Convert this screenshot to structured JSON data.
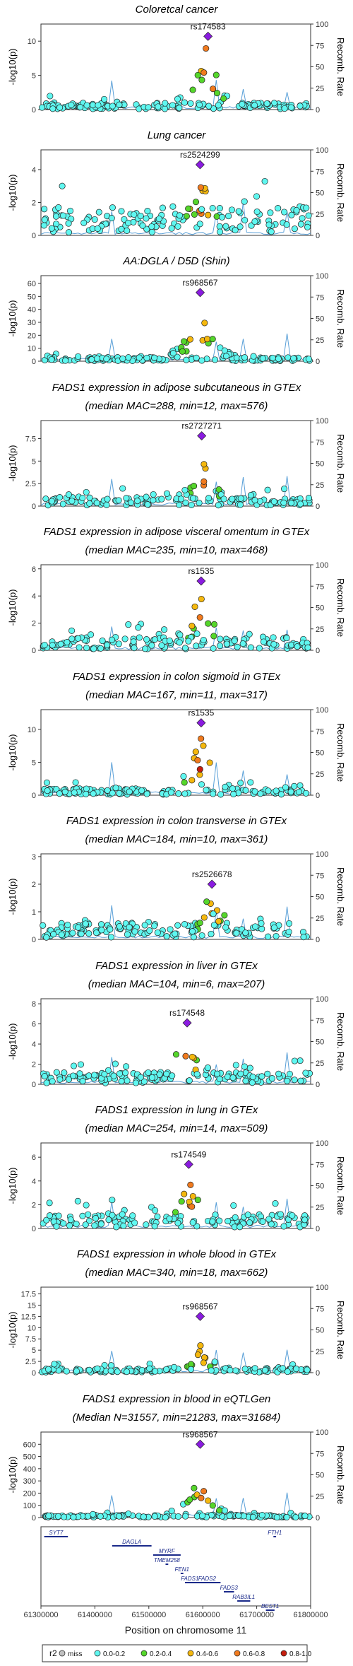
{
  "x_axis": {
    "label": "Position on chromosome 11",
    "range": [
      61300000,
      61800000
    ],
    "ticks": [
      61300000,
      61400000,
      61500000,
      61600000,
      61700000,
      61800000
    ],
    "tick_labels": [
      "61300000",
      "61400000",
      "61500000",
      "61600000",
      "61700000",
      "61800000"
    ]
  },
  "y_axis_label": "-log10(p)",
  "y2_axis": {
    "label": "Recomb. Rate",
    "range": [
      0,
      100
    ],
    "ticks": [
      0,
      25,
      50,
      75,
      100
    ]
  },
  "legend": {
    "title": "r2",
    "items": [
      {
        "label": "miss",
        "color": "#c0c0c0"
      },
      {
        "label": "0.0-0.2",
        "color": "#5ff7f0"
      },
      {
        "label": "0.2-0.4",
        "color": "#55d62b"
      },
      {
        "label": "0.4-0.6",
        "color": "#f5b80e"
      },
      {
        "label": "0.6-0.8",
        "color": "#f07a1e"
      },
      {
        "label": "0.8-1.0",
        "color": "#c41e0e"
      }
    ]
  },
  "lead_color": "#8a1be0",
  "recomb_color": "#5aa0d8",
  "genes": [
    {
      "name": "SYT7",
      "start": 61306000,
      "end": 61350000
    },
    {
      "name": "DAGLA",
      "start": 61432000,
      "end": 61505000
    },
    {
      "name": "MYRF",
      "start": 61508000,
      "end": 61559000
    },
    {
      "name": "TMEM258",
      "start": 61531000,
      "end": 61536000
    },
    {
      "name": "FEN1",
      "start": 61559000,
      "end": 61564000
    },
    {
      "name": "FADS2",
      "start": 61583000,
      "end": 61633000
    },
    {
      "name": "FADS1",
      "start": 61567000,
      "end": 61585000
    },
    {
      "name": "FADS3",
      "start": 61639000,
      "end": 61658000
    },
    {
      "name": "RAB3IL1",
      "start": 61664000,
      "end": 61688000
    },
    {
      "name": "BEST1",
      "start": 61717000,
      "end": 61733000
    },
    {
      "name": "FTH1",
      "start": 61731000,
      "end": 61736000
    }
  ],
  "chart_data": [
    {
      "type": "scatter",
      "title": "Coloretcal cancer",
      "subtitle": "",
      "lead_snp": "rs174583",
      "lead": {
        "x": 61609750,
        "y": 10.7
      },
      "ylim": [
        0,
        12.5
      ],
      "y_ticks": [
        0,
        5,
        10
      ],
      "peak": 10.3,
      "baseline": 0.5
    },
    {
      "type": "scatter",
      "title": "Lung cancer",
      "subtitle": "",
      "lead_snp": "rs2524299",
      "lead": {
        "x": 61595000,
        "y": 4.3
      },
      "ylim": [
        0,
        5.2
      ],
      "y_ticks": [
        0,
        2,
        4
      ],
      "peak": 3.9,
      "baseline": 0.9
    },
    {
      "type": "scatter",
      "title": "AA:DGLA / D5D (Shin)",
      "subtitle": "",
      "lead_snp": "rs968567",
      "lead": {
        "x": 61595200,
        "y": 53
      },
      "ylim": [
        0,
        66
      ],
      "y_ticks": [
        0,
        10,
        20,
        30,
        40,
        50,
        60
      ],
      "peak": 44,
      "baseline": 1.5
    },
    {
      "type": "scatter",
      "title": "FADS1 expression in adipose subcutaneous in GTEx",
      "subtitle": "(median MAC=288, min=12, max=576)",
      "lead_snp": "rs2727271",
      "lead": {
        "x": 61598000,
        "y": 7.8
      },
      "ylim": [
        0,
        9.5
      ],
      "y_ticks": [
        0,
        2.5,
        5,
        7.5
      ],
      "peak": 5.4,
      "baseline": 0.5
    },
    {
      "type": "scatter",
      "title": "FADS1 expression in adipose visceral omentum in GTEx",
      "subtitle": "(median MAC=235, min=10, max=468)",
      "lead_snp": "rs1535",
      "lead": {
        "x": 61597000,
        "y": 5.1
      },
      "ylim": [
        0,
        6.3
      ],
      "y_ticks": [
        0,
        2,
        4,
        6
      ],
      "peak": 5.0,
      "baseline": 0.5
    },
    {
      "type": "scatter",
      "title": "FADS1 expression in colon sigmoid in GTEx",
      "subtitle": "(median MAC=167, min=11, max=317)",
      "lead_snp": "rs1535",
      "lead": {
        "x": 61597000,
        "y": 11.0
      },
      "ylim": [
        0,
        13
      ],
      "y_ticks": [
        0,
        5,
        10
      ],
      "peak": 9.5,
      "baseline": 0.5
    },
    {
      "type": "scatter",
      "title": "FADS1 expression in colon transverse in GTEx",
      "subtitle": "(median MAC=184, min=10, max=361)",
      "lead_snp": "rs2526678",
      "lead": {
        "x": 61617000,
        "y": 2.0
      },
      "ylim": [
        0,
        3.1
      ],
      "y_ticks": [
        0,
        1,
        2,
        3
      ],
      "peak": 2.0,
      "baseline": 0.3
    },
    {
      "type": "scatter",
      "title": "FADS1 expression in liver in GTEx",
      "subtitle": "(median MAC=104, min=6, max=207)",
      "lead_snp": "rs174548",
      "lead": {
        "x": 61571000,
        "y": 6.1
      },
      "ylim": [
        0,
        8.5
      ],
      "y_ticks": [
        0,
        2,
        4,
        6,
        8
      ],
      "peak": 6.8,
      "baseline": 0.6
    },
    {
      "type": "scatter",
      "title": "FADS1 expression in lung in GTEx",
      "subtitle": "(median MAC=254, min=14, max=509)",
      "lead_snp": "rs174549",
      "lead": {
        "x": 61574000,
        "y": 5.4
      },
      "ylim": [
        0,
        7.2
      ],
      "y_ticks": [
        0,
        2,
        4,
        6
      ],
      "peak": 5.4,
      "baseline": 0.6
    },
    {
      "type": "scatter",
      "title": "FADS1 expression in whole blood in GTEx",
      "subtitle": "(median MAC=340, min=18, max=662)",
      "lead_snp": "rs968567",
      "lead": {
        "x": 61595200,
        "y": 12.5
      },
      "ylim": [
        0,
        19
      ],
      "y_ticks": [
        0,
        2.5,
        5,
        7.5,
        10,
        12.5,
        15,
        17.5
      ],
      "peak": 6.4,
      "baseline": 0.5
    },
    {
      "type": "scatter",
      "title": "FADS1 expression in blood in eQTLGen",
      "subtitle": "(Median N=31557, min=21283, max=31684)",
      "lead_snp": "rs968567",
      "lead": {
        "x": 61595200,
        "y": 600
      },
      "ylim": [
        0,
        700
      ],
      "y_ticks": [
        0,
        100,
        200,
        300,
        400,
        500,
        600
      ],
      "peak": 400,
      "baseline": 10
    }
  ]
}
